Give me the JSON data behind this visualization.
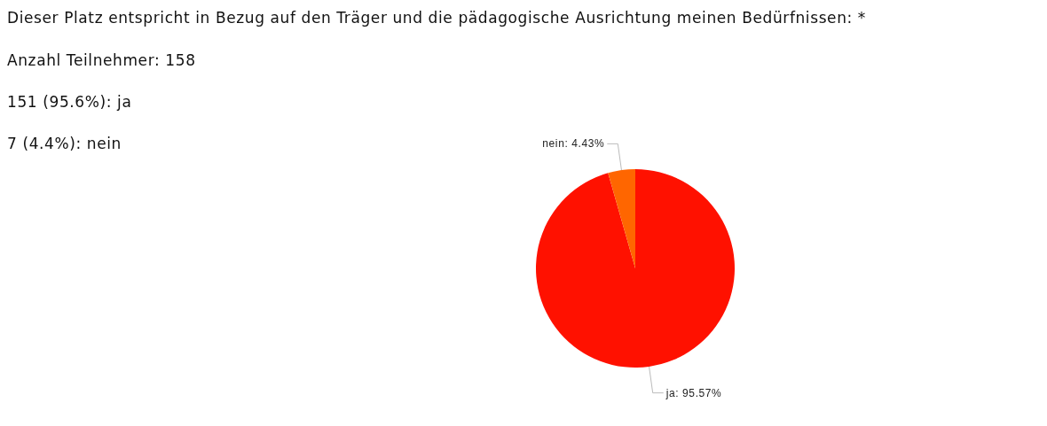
{
  "chart_data": {
    "type": "pie",
    "title": "Dieser Platz entspricht in Bezug auf den Träger und die pädagogische Ausrichtung meinen Bedürfnissen: *",
    "annotations": [
      "Anzahl Teilnehmer: 158",
      "151 (95.6%): ja",
      "7 (4.4%): nein"
    ],
    "categories": [
      "ja",
      "nein"
    ],
    "values": [
      95.57,
      4.43
    ],
    "value_labels": [
      "95.57%",
      "4.43%"
    ],
    "colors": [
      "#ff1100",
      "#ff6600"
    ]
  }
}
